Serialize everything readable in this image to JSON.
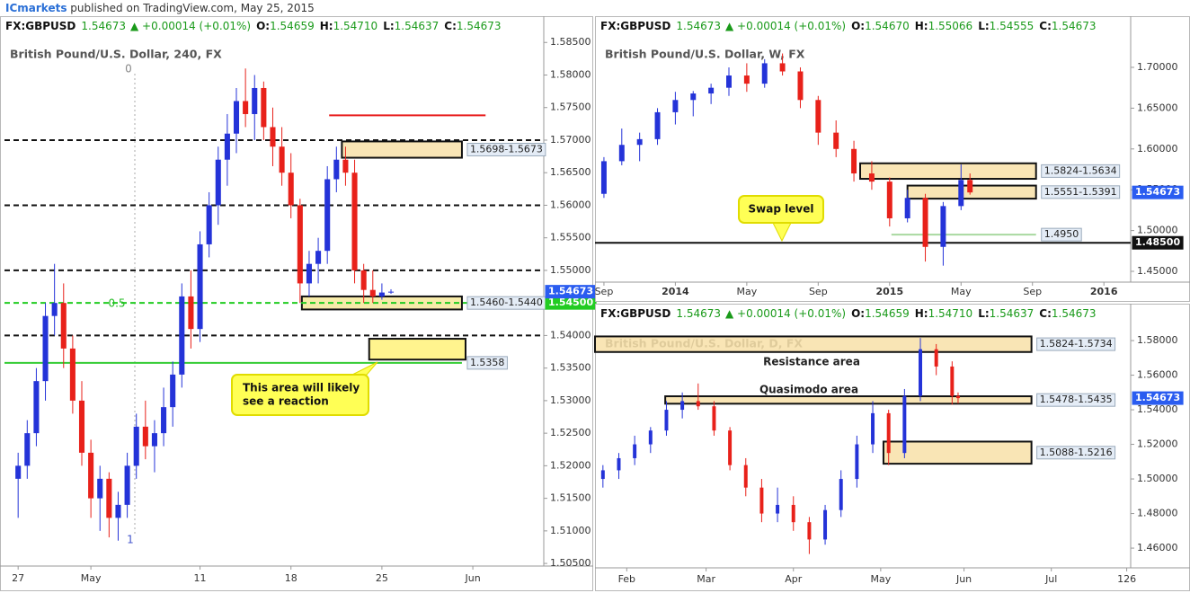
{
  "header": {
    "publisher": "ICmarkets",
    "text": "published on TradingView.com, May 25, 2015"
  },
  "chart_data": [
    {
      "type": "candlestick",
      "symbol": "FX:GBPUSD",
      "last": "1.54673",
      "change": "▲ +0.00014 (+0.01%)",
      "ohlc": [
        {
          "key": "O:",
          "value": "1.54659"
        },
        {
          "key": "H:",
          "value": "1.54710"
        },
        {
          "key": "L:",
          "value": "1.54637"
        },
        {
          "key": "C:",
          "value": "1.54673"
        }
      ],
      "title": "British Pound/U.S. Dollar, 240, FX",
      "up_color": "#2433d8",
      "down_color": "#e8211a",
      "xlim": [
        -0.75,
        28.9
      ],
      "ylim": [
        1.5046,
        1.586
      ],
      "xticks": [
        {
          "value": 0,
          "label": "27"
        },
        {
          "value": 4,
          "label": "May"
        },
        {
          "value": 10,
          "label": "11"
        },
        {
          "value": 15,
          "label": "18"
        },
        {
          "value": 20,
          "label": "25"
        },
        {
          "value": 25,
          "label": "Jun"
        }
      ],
      "yticks": [
        {
          "value": 1.505,
          "label": "1.50500"
        },
        {
          "value": 1.51,
          "label": "1.51000"
        },
        {
          "value": 1.515,
          "label": "1.51500"
        },
        {
          "value": 1.52,
          "label": "1.52000"
        },
        {
          "value": 1.525,
          "label": "1.52500"
        },
        {
          "value": 1.53,
          "label": "1.53000"
        },
        {
          "value": 1.535,
          "label": "1.53500"
        },
        {
          "value": 1.54,
          "label": "1.54000"
        },
        {
          "value": 1.545,
          "label": "1.54500"
        },
        {
          "value": 1.55,
          "label": "1.55000"
        },
        {
          "value": 1.555,
          "label": "1.55500"
        },
        {
          "value": 1.56,
          "label": "1.56000"
        },
        {
          "value": 1.565,
          "label": "1.56500"
        },
        {
          "value": 1.57,
          "label": "1.57000"
        },
        {
          "value": 1.575,
          "label": "1.57500"
        },
        {
          "value": 1.58,
          "label": "1.58000"
        },
        {
          "value": 1.585,
          "label": "1.58500"
        }
      ],
      "x": [
        0,
        0.5,
        1,
        1.5,
        2,
        2.5,
        3,
        3.5,
        4,
        4.5,
        5,
        5.5,
        6,
        6.5,
        7,
        7.5,
        8,
        8.5,
        9,
        9.5,
        10,
        10.5,
        11,
        11.5,
        12,
        12.5,
        13,
        13.5,
        14,
        14.5,
        15,
        15.5,
        16,
        16.5,
        17,
        17.5,
        18,
        18.5,
        19,
        19.5,
        20,
        20.5
      ],
      "open": [
        1.518,
        1.52,
        1.525,
        1.533,
        1.543,
        1.545,
        1.538,
        1.53,
        1.522,
        1.515,
        1.518,
        1.512,
        1.514,
        1.52,
        1.526,
        1.523,
        1.525,
        1.529,
        1.534,
        1.546,
        1.541,
        1.554,
        1.56,
        1.567,
        1.571,
        1.576,
        1.574,
        1.578,
        1.572,
        1.569,
        1.565,
        1.56,
        1.548,
        1.551,
        1.553,
        1.564,
        1.567,
        1.565,
        1.55,
        1.547,
        1.546,
        1.5466
      ],
      "high": [
        1.522,
        1.527,
        1.535,
        1.545,
        1.551,
        1.548,
        1.54,
        1.533,
        1.524,
        1.52,
        1.519,
        1.516,
        1.522,
        1.528,
        1.53,
        1.527,
        1.532,
        1.536,
        1.548,
        1.55,
        1.556,
        1.562,
        1.569,
        1.574,
        1.578,
        1.581,
        1.58,
        1.579,
        1.575,
        1.572,
        1.568,
        1.561,
        1.553,
        1.555,
        1.566,
        1.569,
        1.569,
        1.567,
        1.551,
        1.55,
        1.548,
        1.5471
      ],
      "low": [
        1.512,
        1.518,
        1.523,
        1.53,
        1.54,
        1.535,
        1.528,
        1.52,
        1.512,
        1.51,
        1.509,
        1.5085,
        1.512,
        1.518,
        1.521,
        1.519,
        1.523,
        1.526,
        1.532,
        1.538,
        1.539,
        1.552,
        1.557,
        1.563,
        1.568,
        1.572,
        1.57,
        1.57,
        1.566,
        1.563,
        1.558,
        1.545,
        1.546,
        1.548,
        1.551,
        1.562,
        1.563,
        1.548,
        1.545,
        1.545,
        1.5455,
        1.5464
      ],
      "close": [
        1.52,
        1.525,
        1.533,
        1.543,
        1.545,
        1.538,
        1.53,
        1.522,
        1.515,
        1.518,
        1.512,
        1.514,
        1.52,
        1.526,
        1.523,
        1.525,
        1.529,
        1.534,
        1.546,
        1.541,
        1.554,
        1.56,
        1.567,
        1.571,
        1.576,
        1.574,
        1.578,
        1.572,
        1.569,
        1.565,
        1.56,
        1.548,
        1.551,
        1.553,
        1.564,
        1.567,
        1.565,
        1.55,
        1.547,
        1.546,
        1.5466,
        1.54673
      ],
      "last_price": 1.54673,
      "zones": [
        {
          "low": 1.5673,
          "high": 1.5698,
          "x0": 17.8,
          "x1": 24.4,
          "label": "1.5698-1.5673",
          "color": "#f8e0a8"
        },
        {
          "low": 1.544,
          "high": 1.546,
          "x0": 15.6,
          "x1": 24.4,
          "label": "1.5460-1.5440",
          "color": "#f6e79a"
        },
        {
          "low": 1.5363,
          "high": 1.5395,
          "x0": 19.3,
          "x1": 24.6,
          "color": "#fff27a"
        }
      ],
      "levels": [
        {
          "value": 1.57,
          "color": "#111111",
          "style": "dashed"
        },
        {
          "value": 1.56,
          "color": "#111111",
          "style": "dashed"
        },
        {
          "value": 1.55,
          "color": "#111111",
          "style": "dashed"
        },
        {
          "value": 1.54,
          "color": "#111111",
          "style": "dashed"
        },
        {
          "value": 1.545,
          "color": "#22cc22",
          "style": "dashed",
          "label": "1.54500"
        },
        {
          "value": 1.5358,
          "color": "#33cc33",
          "style": "solid",
          "x1": 24.4,
          "tag": "1.5358"
        },
        {
          "value": 1.5738,
          "color": "#e81c1c",
          "style": "solid",
          "x0": 17.1,
          "x1": 25.7
        }
      ],
      "annotations": [
        "0",
        "0.5",
        "1"
      ],
      "callout": [
        "This area will likely",
        "see a reaction"
      ]
    },
    {
      "type": "candlestick",
      "symbol": "FX:GBPUSD",
      "last": "1.54673",
      "change": "▲ +0.00014 (+0.01%)",
      "ohlc": [
        {
          "key": "O:",
          "value": "1.54670"
        },
        {
          "key": "H:",
          "value": "1.55066"
        },
        {
          "key": "L:",
          "value": "1.54555"
        },
        {
          "key": "C:",
          "value": "1.54673"
        }
      ],
      "title": "British Pound/U.S. Dollar, W, FX",
      "up_color": "#2433d8",
      "down_color": "#e8211a",
      "xlim": [
        -0.5,
        29.5
      ],
      "ylim": [
        1.4368,
        1.7385
      ],
      "xticks": [
        {
          "value": 0,
          "label": "Sep"
        },
        {
          "value": 4,
          "label": "2014"
        },
        {
          "value": 8,
          "label": "May"
        },
        {
          "value": 12,
          "label": "Sep"
        },
        {
          "value": 16,
          "label": "2015"
        },
        {
          "value": 20,
          "label": "May"
        },
        {
          "value": 24,
          "label": "Sep"
        },
        {
          "value": 28,
          "label": "2016"
        }
      ],
      "yticks": [
        {
          "value": 1.45,
          "label": "1.45000"
        },
        {
          "value": 1.5,
          "label": "1.50000"
        },
        {
          "value": 1.55,
          "label": "1.55000"
        },
        {
          "value": 1.6,
          "label": "1.60000"
        },
        {
          "value": 1.65,
          "label": "1.65000"
        },
        {
          "value": 1.7,
          "label": "1.70000"
        }
      ],
      "x": [
        0,
        1,
        2,
        3,
        4,
        5,
        6,
        7,
        8,
        9,
        10,
        11,
        12,
        13,
        14,
        15,
        16,
        17,
        18,
        19,
        20,
        20.5
      ],
      "open": [
        1.545,
        1.585,
        1.605,
        1.612,
        1.645,
        1.66,
        1.668,
        1.675,
        1.69,
        1.68,
        1.705,
        1.695,
        1.66,
        1.62,
        1.6,
        1.57,
        1.56,
        1.515,
        1.54,
        1.48,
        1.53,
        1.562
      ],
      "high": [
        1.59,
        1.625,
        1.62,
        1.65,
        1.67,
        1.671,
        1.68,
        1.7,
        1.705,
        1.71,
        1.717,
        1.7,
        1.665,
        1.635,
        1.61,
        1.585,
        1.565,
        1.55,
        1.545,
        1.535,
        1.581,
        1.57
      ],
      "low": [
        1.54,
        1.58,
        1.585,
        1.605,
        1.63,
        1.64,
        1.655,
        1.665,
        1.67,
        1.675,
        1.69,
        1.65,
        1.605,
        1.59,
        1.56,
        1.55,
        1.505,
        1.51,
        1.462,
        1.457,
        1.525,
        1.544
      ],
      "close": [
        1.585,
        1.605,
        1.612,
        1.645,
        1.66,
        1.668,
        1.675,
        1.69,
        1.68,
        1.705,
        1.695,
        1.66,
        1.62,
        1.6,
        1.57,
        1.56,
        1.515,
        1.54,
        1.48,
        1.53,
        1.562,
        1.54673
      ],
      "last_price": 1.54673,
      "zones": [
        {
          "low": 1.5634,
          "high": 1.5824,
          "x0": 14.35,
          "x1": 24.2,
          "label": "1.5824-1.5634",
          "color": "#f8e0a8"
        },
        {
          "low": 1.5391,
          "high": 1.5551,
          "x0": 17,
          "x1": 24.2,
          "label": "1.5551-1.5391",
          "color": "#f8e0a8"
        }
      ],
      "levels": [
        {
          "value": 1.495,
          "color": "#a8d8a0",
          "style": "solid",
          "x0": 16.1,
          "x1": 24.2,
          "tag": "1.4950"
        },
        {
          "value": 1.485,
          "color": "#111111",
          "style": "solid",
          "label": "1.48500"
        }
      ],
      "annotations": [],
      "callout": [
        "Swap level"
      ]
    },
    {
      "type": "candlestick",
      "symbol": "FX:GBPUSD",
      "last": "1.54673",
      "change": "▲ +0.00014 (+0.01%)",
      "ohlc": [
        {
          "key": "O:",
          "value": "1.54659"
        },
        {
          "key": "H:",
          "value": "1.54710"
        },
        {
          "key": "L:",
          "value": "1.54637"
        },
        {
          "key": "C:",
          "value": "1.54673"
        }
      ],
      "title": "British Pound/U.S. Dollar, D, FX",
      "up_color": "#2433d8",
      "down_color": "#e8211a",
      "xlim": [
        -8,
        127
      ],
      "ylim": [
        1.4486,
        1.5899
      ],
      "xticks": [
        {
          "value": 0,
          "label": "Feb"
        },
        {
          "value": 20,
          "label": "Mar"
        },
        {
          "value": 42,
          "label": "Apr"
        },
        {
          "value": 64,
          "label": "May"
        },
        {
          "value": 85,
          "label": "Jun"
        },
        {
          "value": 107,
          "label": "Jul"
        },
        126
      ],
      "yticks": [
        {
          "value": 1.46,
          "label": "1.46000"
        },
        {
          "value": 1.48,
          "label": "1.48000"
        },
        {
          "value": 1.5,
          "label": "1.50000"
        },
        {
          "value": 1.52,
          "label": "1.52000"
        },
        {
          "value": 1.54,
          "label": "1.54000"
        },
        {
          "value": 1.56,
          "label": "1.56000"
        },
        {
          "value": 1.58,
          "label": "1.58000"
        }
      ],
      "x": [
        -6,
        -2,
        2,
        6,
        10,
        14,
        18,
        22,
        26,
        30,
        34,
        38,
        42,
        46,
        50,
        54,
        58,
        62,
        66,
        70,
        74,
        78,
        82,
        83.5
      ],
      "open": [
        1.5,
        1.505,
        1.512,
        1.52,
        1.528,
        1.54,
        1.545,
        1.542,
        1.528,
        1.508,
        1.495,
        1.48,
        1.485,
        1.475,
        1.465,
        1.482,
        1.5,
        1.52,
        1.538,
        1.515,
        1.548,
        1.575,
        1.565,
        1.548
      ],
      "high": [
        1.508,
        1.515,
        1.525,
        1.53,
        1.545,
        1.55,
        1.5552,
        1.545,
        1.53,
        1.512,
        1.5,
        1.495,
        1.49,
        1.478,
        1.485,
        1.505,
        1.525,
        1.545,
        1.54,
        1.552,
        1.5815,
        1.578,
        1.568,
        1.55
      ],
      "low": [
        1.495,
        1.5,
        1.508,
        1.515,
        1.525,
        1.535,
        1.54,
        1.525,
        1.505,
        1.49,
        1.475,
        1.475,
        1.47,
        1.4566,
        1.462,
        1.478,
        1.495,
        1.515,
        1.508,
        1.512,
        1.545,
        1.56,
        1.543,
        1.5436
      ],
      "close": [
        1.505,
        1.512,
        1.52,
        1.528,
        1.54,
        1.545,
        1.542,
        1.528,
        1.508,
        1.495,
        1.48,
        1.485,
        1.475,
        1.465,
        1.482,
        1.5,
        1.52,
        1.538,
        1.515,
        1.548,
        1.575,
        1.565,
        1.548,
        1.54673
      ],
      "last_price": 1.54673,
      "zones": [
        {
          "low": 1.5734,
          "high": 1.5824,
          "x0": -8,
          "x1": 102,
          "label": "1.5824-1.5734",
          "color": "#f8e0a8"
        },
        {
          "low": 1.5435,
          "high": 1.5478,
          "x0": 9.7,
          "x1": 102,
          "label": "1.5478-1.5435",
          "color": "#f8e0a8"
        },
        {
          "low": 1.5088,
          "high": 1.5216,
          "x0": 64.7,
          "x1": 102,
          "label": "1.5088-1.5216",
          "color": "#f8e0a8"
        }
      ],
      "levels": [],
      "annotations": [
        "Resistance area",
        "Quasimodo area"
      ],
      "callout": []
    }
  ]
}
